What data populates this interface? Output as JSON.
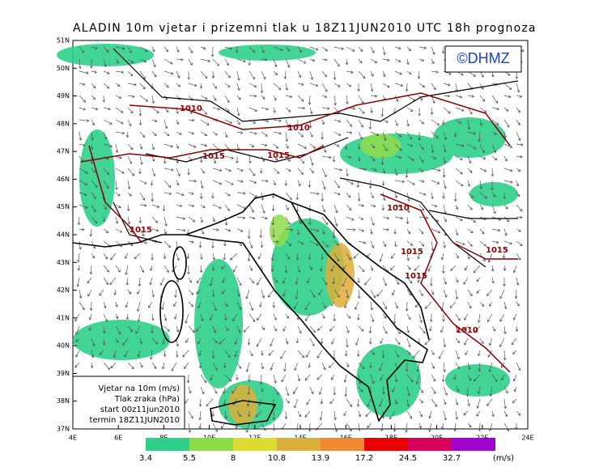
{
  "title": "ALADIN 10m vjetar i prizemni tlak u 18Z11JUN2010 UTC 18h prognoza",
  "logo": "©DHMZ",
  "lat_labels": [
    "51N",
    "50N",
    "49N",
    "48N",
    "47N",
    "46N",
    "45N",
    "44N",
    "43N",
    "42N",
    "41N",
    "40N",
    "39N",
    "38N",
    "37N"
  ],
  "lon_labels": [
    "4E",
    "6E",
    "8E",
    "10E",
    "12E",
    "14E",
    "16E",
    "18E",
    "20E",
    "22E",
    "24E"
  ],
  "info_box": [
    "Vjetar na 10m (m/s)",
    "Tlak zraka (hPa)",
    "start 00z11jun2010",
    "termin 18Z11JUN2010"
  ],
  "isobar_labels": [
    1010,
    1010,
    1015,
    1015,
    1015,
    1010,
    1015,
    1015,
    1015,
    1010
  ],
  "colorbar": {
    "levels": [
      3.4,
      5.5,
      8,
      10.8,
      13.9,
      17.2,
      24.5,
      32.7
    ],
    "unit": "(m/s)",
    "colors": [
      "#2ed08a",
      "#8fdc4a",
      "#dcdc32",
      "#dcae3a",
      "#f08a32",
      "#e80000",
      "#d8005a",
      "#a000d0"
    ]
  }
}
